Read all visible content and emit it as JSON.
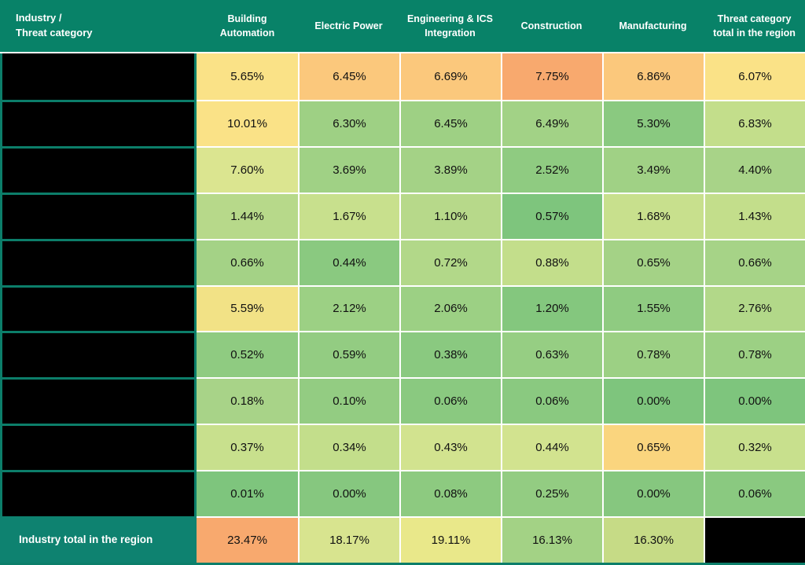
{
  "header": {
    "corner": "Industry /\nThreat category",
    "columns": [
      "Building Automation",
      "Electric Power",
      "Engineering & ICS Integration",
      "Construction",
      "Manufacturing",
      "Threat category total in the region"
    ]
  },
  "rows": [
    {
      "redacted": true,
      "cells": [
        [
          "5.65%",
          "#FAE287"
        ],
        [
          "6.45%",
          "#FBC87C"
        ],
        [
          "6.69%",
          "#FBC87C"
        ],
        [
          "7.75%",
          "#F8A96E"
        ],
        [
          "6.86%",
          "#FBC87C"
        ],
        [
          "6.07%",
          "#FAE287"
        ]
      ]
    },
    {
      "redacted": true,
      "cells": [
        [
          "10.01%",
          "#FAE287"
        ],
        [
          "6.30%",
          "#9ED084"
        ],
        [
          "6.45%",
          "#9ED084"
        ],
        [
          "6.49%",
          "#A2D286"
        ],
        [
          "5.30%",
          "#8AC980"
        ],
        [
          "6.83%",
          "#C3DE8B"
        ]
      ]
    },
    {
      "redacted": true,
      "cells": [
        [
          "7.60%",
          "#DBE590"
        ],
        [
          "3.69%",
          "#A0D185"
        ],
        [
          "3.89%",
          "#A4D286"
        ],
        [
          "2.52%",
          "#8FCB81"
        ],
        [
          "3.49%",
          "#A0D185"
        ],
        [
          "4.40%",
          "#A8D388"
        ]
      ]
    },
    {
      "redacted": true,
      "cells": [
        [
          "1.44%",
          "#B7D98A"
        ],
        [
          "1.67%",
          "#C8E08D"
        ],
        [
          "1.10%",
          "#B7D98A"
        ],
        [
          "0.57%",
          "#7EC57D"
        ],
        [
          "1.68%",
          "#C8E08D"
        ],
        [
          "1.43%",
          "#C3DE8B"
        ]
      ]
    },
    {
      "redacted": true,
      "cells": [
        [
          "0.66%",
          "#A4D286"
        ],
        [
          "0.44%",
          "#8AC980"
        ],
        [
          "0.72%",
          "#B2D889"
        ],
        [
          "0.88%",
          "#C3DE8B"
        ],
        [
          "0.65%",
          "#A4D286"
        ],
        [
          "0.66%",
          "#A6D387"
        ]
      ]
    },
    {
      "redacted": true,
      "cells": [
        [
          "5.59%",
          "#F2E286"
        ],
        [
          "2.12%",
          "#9CD084"
        ],
        [
          "2.06%",
          "#9CD084"
        ],
        [
          "1.20%",
          "#84C77E"
        ],
        [
          "1.55%",
          "#8FCB81"
        ],
        [
          "2.76%",
          "#B2D889"
        ]
      ]
    },
    {
      "redacted": true,
      "cells": [
        [
          "0.52%",
          "#8FCB81"
        ],
        [
          "0.59%",
          "#93CC82"
        ],
        [
          "0.38%",
          "#8AC980"
        ],
        [
          "0.63%",
          "#96CE83"
        ],
        [
          "0.78%",
          "#9CD084"
        ],
        [
          "0.78%",
          "#9CD084"
        ]
      ]
    },
    {
      "redacted": true,
      "cells": [
        [
          "0.18%",
          "#A8D388"
        ],
        [
          "0.10%",
          "#93CC82"
        ],
        [
          "0.06%",
          "#8AC980"
        ],
        [
          "0.06%",
          "#8AC980"
        ],
        [
          "0.00%",
          "#7EC57D"
        ],
        [
          "0.00%",
          "#7EC57D"
        ]
      ]
    },
    {
      "redacted": true,
      "cells": [
        [
          "0.37%",
          "#C8E08D"
        ],
        [
          "0.34%",
          "#C3DE8B"
        ],
        [
          "0.43%",
          "#D2E38F"
        ],
        [
          "0.44%",
          "#D2E38F"
        ],
        [
          "0.65%",
          "#FAD57E"
        ],
        [
          "0.32%",
          "#C8E08D"
        ]
      ]
    },
    {
      "redacted": true,
      "cells": [
        [
          "0.01%",
          "#7EC57D"
        ],
        [
          "0.00%",
          "#86C77F"
        ],
        [
          "0.08%",
          "#8DCA80"
        ],
        [
          "0.25%",
          "#93CC82"
        ],
        [
          "0.00%",
          "#86C77F"
        ],
        [
          "0.06%",
          "#8AC980"
        ]
      ]
    }
  ],
  "footer": {
    "label": "Industry total in the region",
    "cells": [
      [
        "23.47%",
        "#F8A96E"
      ],
      [
        "18.17%",
        "#D8E48F"
      ],
      [
        "19.11%",
        "#E9E88A"
      ],
      [
        "16.13%",
        "#A3D285"
      ],
      [
        "16.30%",
        "#C6DB86"
      ]
    ],
    "total_redacted": true
  },
  "colors": {
    "header_bg": "#088268",
    "footer_label_bg": "#0E8270",
    "grid_teal": "#0C7E6A",
    "cell_divider": "#FFFFFF",
    "redacted_black": "#000000",
    "header_text": "#FFFFFF",
    "cell_text": "#111111",
    "heat_scale": [
      "#63BE7B",
      "#FFEB84",
      "#F8696B"
    ]
  },
  "chart_data": {
    "type": "heatmap",
    "title": "",
    "units": "%",
    "columns": [
      "Building Automation",
      "Electric Power",
      "Engineering & ICS Integration",
      "Construction",
      "Manufacturing",
      "Threat category total in the region"
    ],
    "rows": [
      "[redacted]",
      "[redacted]",
      "[redacted]",
      "[redacted]",
      "[redacted]",
      "[redacted]",
      "[redacted]",
      "[redacted]",
      "[redacted]",
      "[redacted]"
    ],
    "values": [
      [
        5.65,
        6.45,
        6.69,
        7.75,
        6.86,
        6.07
      ],
      [
        10.01,
        6.3,
        6.45,
        6.49,
        5.3,
        6.83
      ],
      [
        7.6,
        3.69,
        3.89,
        2.52,
        3.49,
        4.4
      ],
      [
        1.44,
        1.67,
        1.1,
        0.57,
        1.68,
        1.43
      ],
      [
        0.66,
        0.44,
        0.72,
        0.88,
        0.65,
        0.66
      ],
      [
        5.59,
        2.12,
        2.06,
        1.2,
        1.55,
        2.76
      ],
      [
        0.52,
        0.59,
        0.38,
        0.63,
        0.78,
        0.78
      ],
      [
        0.18,
        0.1,
        0.06,
        0.06,
        0.0,
        0.0
      ],
      [
        0.37,
        0.34,
        0.43,
        0.44,
        0.65,
        0.32
      ],
      [
        0.01,
        0.0,
        0.08,
        0.25,
        0.0,
        0.06
      ]
    ],
    "footer_row": {
      "label": "Industry total in the region",
      "values": [
        23.47,
        18.17,
        19.11,
        16.13,
        16.3,
        null
      ]
    },
    "legend_position": "none",
    "notes": "Row labels (threat categories) and the grand-total cell are blacked out in the source image; cell backgrounds follow a green-yellow-red heat scale."
  }
}
